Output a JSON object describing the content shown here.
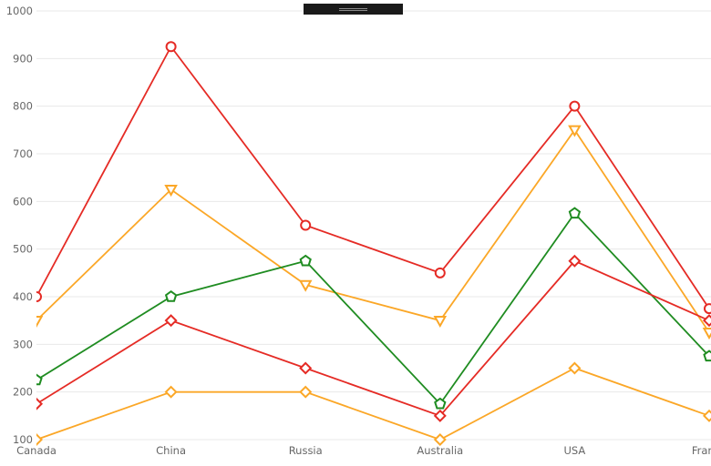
{
  "overlay": {
    "grip_icon": "drag-grip",
    "background": "#1a1a1a",
    "grip_color": "#8a8a8a"
  },
  "chart_data": {
    "type": "line",
    "title": "",
    "xlabel": "",
    "ylabel": "",
    "categories": [
      "Canada",
      "China",
      "Russia",
      "Australia",
      "USA",
      "France"
    ],
    "series": [
      {
        "name": "red-circle-series",
        "color": "#e52b25",
        "marker": "circle",
        "values": [
          400,
          925,
          550,
          450,
          800,
          375
        ]
      },
      {
        "name": "orange-triangle-series",
        "color": "#fba727",
        "marker": "triangle-down",
        "values": [
          350,
          625,
          425,
          350,
          750,
          325
        ]
      },
      {
        "name": "green-pentagon-series",
        "color": "#1f8c21",
        "marker": "pentagon",
        "values": [
          225,
          400,
          475,
          175,
          575,
          275
        ]
      },
      {
        "name": "red-diamond-series",
        "color": "#e52b25",
        "marker": "diamond",
        "values": [
          175,
          350,
          250,
          150,
          475,
          350
        ]
      },
      {
        "name": "orange-diamond-series",
        "color": "#fba727",
        "marker": "diamond",
        "values": [
          100,
          200,
          200,
          100,
          250,
          150
        ]
      }
    ],
    "y_ticks": [
      1000,
      900,
      800,
      700,
      600,
      500,
      400,
      300,
      200,
      100
    ],
    "ylim": [
      100,
      1000
    ],
    "grid": true,
    "legend_position": "none"
  },
  "ui_colors": {
    "background": "#ffffff",
    "gridline": "#e8e8e8",
    "tick_text": "#666666",
    "marker_fill": "#ffffff"
  }
}
